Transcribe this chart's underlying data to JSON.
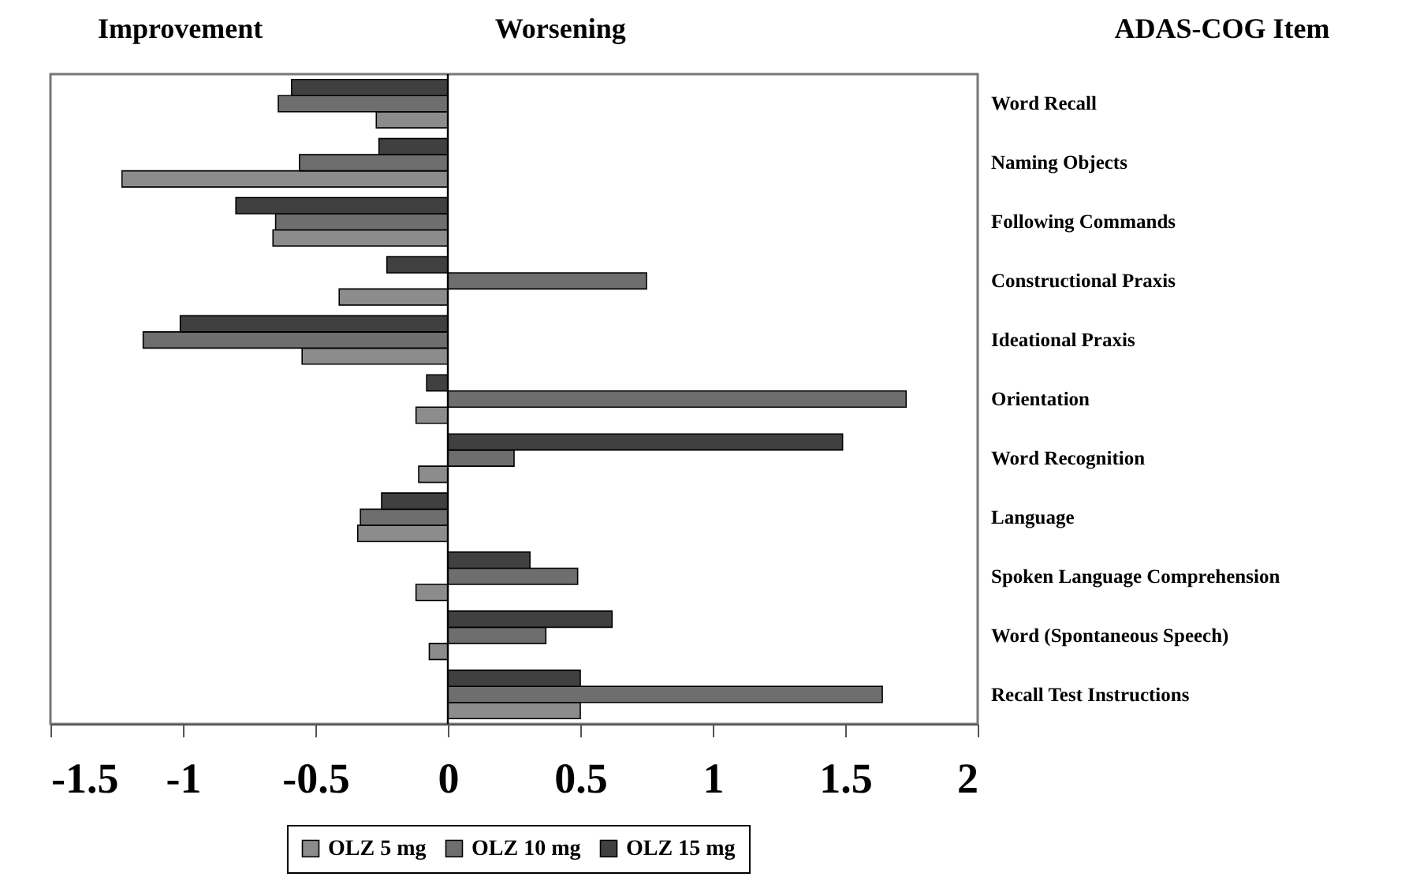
{
  "chart_data": {
    "type": "bar",
    "orientation": "horizontal",
    "categories": [
      "Word Recall",
      "Naming Objects",
      "Following Commands",
      "Constructional Praxis",
      "Ideational Praxis",
      "Orientation",
      "Word Recognition",
      "Language",
      "Spoken Language Comprehension",
      "Word (Spontaneous Speech)",
      "Recall Test Instructions"
    ],
    "series": [
      {
        "name": "OLZ 5 mg",
        "color": "#8c8c8c",
        "values": [
          -0.27,
          -1.23,
          -0.66,
          -0.41,
          -0.55,
          -0.12,
          -0.11,
          -0.34,
          -0.12,
          -0.07,
          0.5
        ]
      },
      {
        "name": "OLZ 10 mg",
        "color": "#6e6e6e",
        "values": [
          -0.64,
          -0.56,
          -0.65,
          0.75,
          -1.15,
          1.73,
          0.25,
          -0.33,
          0.49,
          0.37,
          1.64
        ]
      },
      {
        "name": "OLZ 15 mg",
        "color": "#404040",
        "values": [
          -0.59,
          -0.26,
          -0.8,
          -0.23,
          -1.01,
          -0.08,
          1.49,
          -0.25,
          0.31,
          0.62,
          0.5
        ]
      }
    ],
    "xlim": [
      -1.5,
      2
    ],
    "xticks": [
      -1.5,
      -1,
      -0.5,
      0,
      0.5,
      1,
      1.5,
      2
    ],
    "ref_lines": [
      {
        "axis": "x",
        "value": 0
      }
    ],
    "annotations": [
      "Improvement",
      "Worsening",
      "ADAS-COG Item"
    ],
    "legend": "bottom",
    "grid": false
  }
}
